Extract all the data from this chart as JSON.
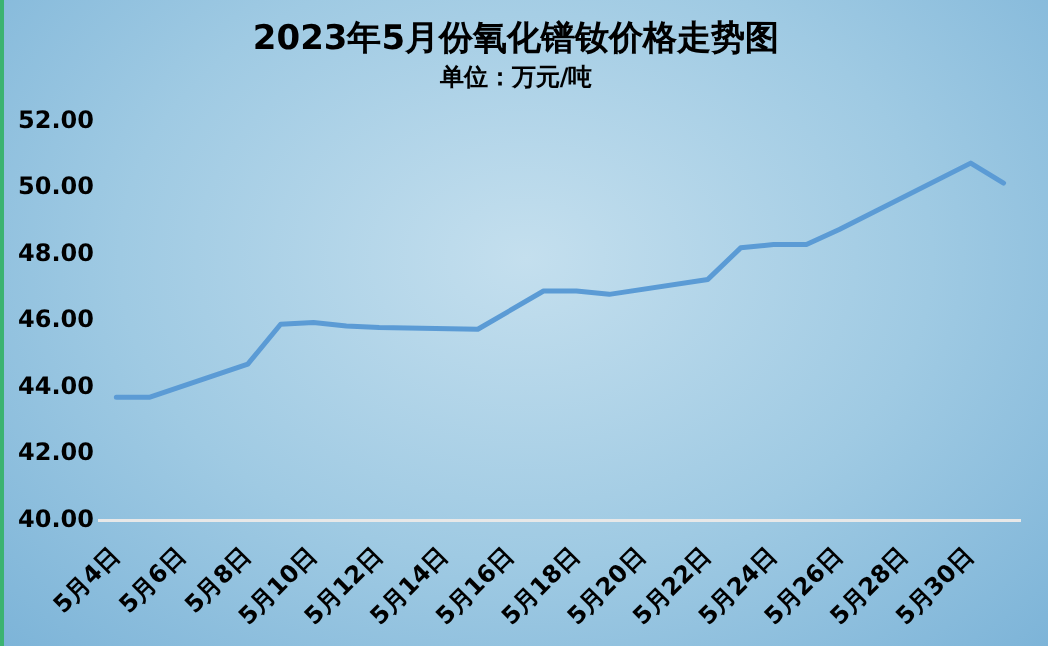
{
  "chart_data": {
    "type": "line",
    "title": "2023年5月份氧化镨钕价格走势图",
    "subtitle": "单位：万元/吨",
    "x": [
      "--05-04",
      "--05-05",
      "--05-08",
      "--05-09",
      "--05-10",
      "--05-11",
      "--05-12",
      "--05-15",
      "--05-17",
      "--05-18",
      "--05-19",
      "--05-22",
      "--05-23",
      "--05-24",
      "--05-25",
      "--05-26",
      "--05-30",
      "--05-31"
    ],
    "series": [
      {
        "color": "#5b9bd5",
        "values": [
          43.7,
          43.7,
          44.7,
          45.9,
          45.95,
          45.85,
          45.8,
          45.75,
          46.9,
          46.9,
          46.8,
          47.25,
          48.2,
          48.3,
          48.3,
          48.75,
          50.75,
          50.15
        ]
      }
    ],
    "xlim": [
      "--05-03T12:00",
      "--05-31T12:00"
    ],
    "xticks": [
      {
        "value": "--05-04",
        "label": "5月4日"
      },
      {
        "value": "--05-06",
        "label": "5月6日"
      },
      {
        "value": "--05-08",
        "label": "5月8日"
      },
      {
        "value": "--05-10",
        "label": "5月10日"
      },
      {
        "value": "--05-12",
        "label": "5月12日"
      },
      {
        "value": "--05-14",
        "label": "5月14日"
      },
      {
        "value": "--05-16",
        "label": "5月16日"
      },
      {
        "value": "--05-18",
        "label": "5月18日"
      },
      {
        "value": "--05-20",
        "label": "5月20日"
      },
      {
        "value": "--05-22",
        "label": "5月22日"
      },
      {
        "value": "--05-24",
        "label": "5月24日"
      },
      {
        "value": "--05-26",
        "label": "5月26日"
      },
      {
        "value": "--05-28",
        "label": "5月28日"
      },
      {
        "value": "--05-30",
        "label": "5月30日"
      }
    ],
    "ylim": [
      40,
      52
    ],
    "yticks": [
      {
        "value": 40,
        "label": "40.00"
      },
      {
        "value": 42,
        "label": "42.00"
      },
      {
        "value": 44,
        "label": "44.00"
      },
      {
        "value": 46,
        "label": "46.00"
      },
      {
        "value": 48,
        "label": "48.00"
      },
      {
        "value": 50,
        "label": "50.00"
      },
      {
        "value": 52,
        "label": "52.00"
      }
    ],
    "grid": false,
    "legend": false,
    "marker": "none",
    "line_style": "solid"
  }
}
